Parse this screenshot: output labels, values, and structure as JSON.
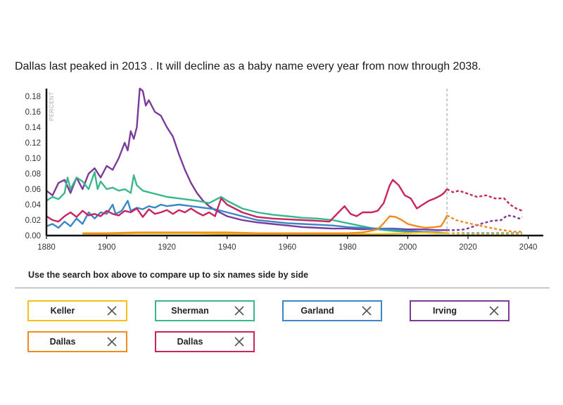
{
  "headline": {
    "text": "Dallas last peaked in 2013 . It will decline as a baby name every year from now through 2038."
  },
  "instructions": "Use the search box above to compare up to six names side by side",
  "names": [
    {
      "label": "Keller",
      "color": "#f2c21b",
      "remove_icon": "close-x-icon"
    },
    {
      "label": "Sherman",
      "color": "#3ab88c",
      "remove_icon": "close-x-icon"
    },
    {
      "label": "Garland",
      "color": "#3a87c8",
      "remove_icon": "close-x-icon"
    },
    {
      "label": "Irving",
      "color": "#7b3a9a",
      "remove_icon": "close-x-icon"
    },
    {
      "label": "Dallas",
      "color": "#f08c1e",
      "remove_icon": "close-x-icon"
    },
    {
      "label": "Dallas",
      "color": "#c8245f",
      "remove_icon": "close-x-icon"
    }
  ],
  "chart_data": {
    "type": "line",
    "title": "",
    "xlabel": "",
    "ylabel": "PERCENT",
    "xlim": [
      1880,
      2045
    ],
    "ylim": [
      0,
      0.19
    ],
    "x_ticks": [
      1880,
      1900,
      1920,
      1940,
      1960,
      1980,
      2000,
      2020,
      2040
    ],
    "y_ticks": [
      0.0,
      0.02,
      0.04,
      0.06,
      0.08,
      0.1,
      0.12,
      0.14,
      0.16,
      0.18
    ],
    "y_tick_labels": [
      "0.00",
      "0.02",
      "0.04",
      "0.06",
      "0.08",
      "0.10",
      "0.12",
      "0.14",
      "0.16",
      "0.18"
    ],
    "projection_start": 2013,
    "projection_style": "dashed",
    "series": [
      {
        "name": "Irving",
        "color": "#7b3a9a",
        "actual": [
          [
            1880,
            0.058
          ],
          [
            1882,
            0.052
          ],
          [
            1884,
            0.068
          ],
          [
            1886,
            0.072
          ],
          [
            1888,
            0.055
          ],
          [
            1890,
            0.075
          ],
          [
            1892,
            0.06
          ],
          [
            1894,
            0.08
          ],
          [
            1896,
            0.087
          ],
          [
            1898,
            0.075
          ],
          [
            1900,
            0.09
          ],
          [
            1902,
            0.085
          ],
          [
            1904,
            0.1
          ],
          [
            1906,
            0.12
          ],
          [
            1907,
            0.11
          ],
          [
            1908,
            0.135
          ],
          [
            1909,
            0.125
          ],
          [
            1910,
            0.14
          ],
          [
            1911,
            0.19
          ],
          [
            1912,
            0.187
          ],
          [
            1913,
            0.168
          ],
          [
            1914,
            0.175
          ],
          [
            1916,
            0.16
          ],
          [
            1918,
            0.155
          ],
          [
            1920,
            0.14
          ],
          [
            1922,
            0.128
          ],
          [
            1924,
            0.105
          ],
          [
            1926,
            0.085
          ],
          [
            1928,
            0.068
          ],
          [
            1930,
            0.055
          ],
          [
            1932,
            0.045
          ],
          [
            1934,
            0.038
          ],
          [
            1936,
            0.033
          ],
          [
            1938,
            0.029
          ],
          [
            1940,
            0.025
          ],
          [
            1945,
            0.02
          ],
          [
            1950,
            0.017
          ],
          [
            1955,
            0.015
          ],
          [
            1960,
            0.013
          ],
          [
            1965,
            0.011
          ],
          [
            1970,
            0.01
          ],
          [
            1975,
            0.009
          ],
          [
            1980,
            0.009
          ],
          [
            1985,
            0.008
          ],
          [
            1990,
            0.009
          ],
          [
            1995,
            0.009
          ],
          [
            2000,
            0.008
          ],
          [
            2005,
            0.008
          ],
          [
            2010,
            0.007
          ],
          [
            2013,
            0.007
          ]
        ],
        "projected": [
          [
            2013,
            0.007
          ],
          [
            2016,
            0.007
          ],
          [
            2019,
            0.008
          ],
          [
            2022,
            0.012
          ],
          [
            2025,
            0.016
          ],
          [
            2028,
            0.019
          ],
          [
            2031,
            0.02
          ],
          [
            2033,
            0.026
          ],
          [
            2035,
            0.025
          ],
          [
            2037,
            0.022
          ],
          [
            2038,
            0.024
          ]
        ]
      },
      {
        "name": "Sherman",
        "color": "#3ab88c",
        "actual": [
          [
            1880,
            0.045
          ],
          [
            1882,
            0.05
          ],
          [
            1884,
            0.047
          ],
          [
            1886,
            0.055
          ],
          [
            1887,
            0.075
          ],
          [
            1888,
            0.06
          ],
          [
            1890,
            0.075
          ],
          [
            1892,
            0.07
          ],
          [
            1894,
            0.06
          ],
          [
            1896,
            0.082
          ],
          [
            1897,
            0.06
          ],
          [
            1898,
            0.07
          ],
          [
            1900,
            0.06
          ],
          [
            1902,
            0.062
          ],
          [
            1904,
            0.058
          ],
          [
            1906,
            0.06
          ],
          [
            1908,
            0.055
          ],
          [
            1909,
            0.078
          ],
          [
            1910,
            0.065
          ],
          [
            1912,
            0.058
          ],
          [
            1914,
            0.056
          ],
          [
            1916,
            0.054
          ],
          [
            1918,
            0.052
          ],
          [
            1920,
            0.05
          ],
          [
            1924,
            0.048
          ],
          [
            1928,
            0.046
          ],
          [
            1930,
            0.045
          ],
          [
            1934,
            0.042
          ],
          [
            1938,
            0.05
          ],
          [
            1940,
            0.045
          ],
          [
            1945,
            0.035
          ],
          [
            1950,
            0.03
          ],
          [
            1955,
            0.027
          ],
          [
            1960,
            0.025
          ],
          [
            1965,
            0.023
          ],
          [
            1970,
            0.022
          ],
          [
            1975,
            0.02
          ],
          [
            1980,
            0.016
          ],
          [
            1985,
            0.012
          ],
          [
            1990,
            0.008
          ],
          [
            1995,
            0.006
          ],
          [
            2000,
            0.005
          ],
          [
            2005,
            0.004
          ],
          [
            2010,
            0.003
          ],
          [
            2013,
            0.003
          ]
        ],
        "projected": [
          [
            2013,
            0.003
          ],
          [
            2020,
            0.003
          ],
          [
            2030,
            0.002
          ],
          [
            2038,
            0.002
          ]
        ]
      },
      {
        "name": "Garland",
        "color": "#3a87c8",
        "actual": [
          [
            1880,
            0.012
          ],
          [
            1882,
            0.015
          ],
          [
            1884,
            0.01
          ],
          [
            1886,
            0.018
          ],
          [
            1888,
            0.012
          ],
          [
            1890,
            0.022
          ],
          [
            1892,
            0.015
          ],
          [
            1894,
            0.03
          ],
          [
            1896,
            0.022
          ],
          [
            1898,
            0.03
          ],
          [
            1900,
            0.028
          ],
          [
            1902,
            0.04
          ],
          [
            1903,
            0.028
          ],
          [
            1905,
            0.032
          ],
          [
            1907,
            0.045
          ],
          [
            1908,
            0.032
          ],
          [
            1910,
            0.036
          ],
          [
            1912,
            0.034
          ],
          [
            1914,
            0.038
          ],
          [
            1916,
            0.036
          ],
          [
            1918,
            0.04
          ],
          [
            1920,
            0.038
          ],
          [
            1924,
            0.04
          ],
          [
            1928,
            0.038
          ],
          [
            1932,
            0.036
          ],
          [
            1936,
            0.034
          ],
          [
            1940,
            0.03
          ],
          [
            1945,
            0.025
          ],
          [
            1950,
            0.02
          ],
          [
            1955,
            0.018
          ],
          [
            1960,
            0.016
          ],
          [
            1965,
            0.015
          ],
          [
            1970,
            0.014
          ],
          [
            1975,
            0.013
          ],
          [
            1980,
            0.011
          ],
          [
            1985,
            0.01
          ],
          [
            1990,
            0.009
          ],
          [
            1995,
            0.008
          ],
          [
            2000,
            0.006
          ],
          [
            2005,
            0.005
          ],
          [
            2010,
            0.004
          ],
          [
            2013,
            0.003
          ]
        ],
        "projected": [
          [
            2013,
            0.003
          ],
          [
            2020,
            0.003
          ],
          [
            2030,
            0.003
          ],
          [
            2038,
            0.003
          ]
        ]
      },
      {
        "name": "Keller",
        "color": "#f2c21b",
        "actual": [
          [
            1892,
            0.002
          ],
          [
            1900,
            0.002
          ],
          [
            1910,
            0.003
          ],
          [
            1920,
            0.003
          ],
          [
            1930,
            0.003
          ],
          [
            1940,
            0.002
          ],
          [
            1950,
            0.002
          ],
          [
            1960,
            0.002
          ],
          [
            1970,
            0.002
          ],
          [
            1980,
            0.002
          ],
          [
            1990,
            0.002
          ],
          [
            2000,
            0.003
          ],
          [
            2005,
            0.004
          ],
          [
            2010,
            0.003
          ],
          [
            2013,
            0.003
          ]
        ],
        "projected": [
          [
            2013,
            0.003
          ],
          [
            2020,
            0.002
          ],
          [
            2030,
            0.002
          ],
          [
            2038,
            0.002
          ]
        ]
      },
      {
        "name": "Dallas",
        "color": "#f08c1e",
        "actual": [
          [
            1892,
            0.003
          ],
          [
            1900,
            0.003
          ],
          [
            1910,
            0.004
          ],
          [
            1920,
            0.004
          ],
          [
            1930,
            0.004
          ],
          [
            1940,
            0.004
          ],
          [
            1950,
            0.003
          ],
          [
            1960,
            0.003
          ],
          [
            1970,
            0.003
          ],
          [
            1980,
            0.003
          ],
          [
            1985,
            0.004
          ],
          [
            1990,
            0.008
          ],
          [
            1992,
            0.016
          ],
          [
            1994,
            0.025
          ],
          [
            1996,
            0.024
          ],
          [
            1998,
            0.02
          ],
          [
            2000,
            0.015
          ],
          [
            2003,
            0.012
          ],
          [
            2006,
            0.01
          ],
          [
            2009,
            0.011
          ],
          [
            2011,
            0.012
          ],
          [
            2012,
            0.018
          ],
          [
            2013,
            0.026
          ]
        ],
        "projected": [
          [
            2013,
            0.026
          ],
          [
            2016,
            0.02
          ],
          [
            2020,
            0.016
          ],
          [
            2025,
            0.012
          ],
          [
            2030,
            0.008
          ],
          [
            2035,
            0.005
          ],
          [
            2038,
            0.005
          ]
        ]
      },
      {
        "name": "Dallas",
        "color": "#c8245f",
        "actual": [
          [
            1880,
            0.025
          ],
          [
            1882,
            0.02
          ],
          [
            1884,
            0.018
          ],
          [
            1886,
            0.025
          ],
          [
            1888,
            0.03
          ],
          [
            1890,
            0.024
          ],
          [
            1892,
            0.032
          ],
          [
            1894,
            0.026
          ],
          [
            1896,
            0.028
          ],
          [
            1898,
            0.025
          ],
          [
            1900,
            0.032
          ],
          [
            1902,
            0.028
          ],
          [
            1904,
            0.026
          ],
          [
            1906,
            0.032
          ],
          [
            1908,
            0.03
          ],
          [
            1910,
            0.035
          ],
          [
            1912,
            0.024
          ],
          [
            1914,
            0.034
          ],
          [
            1916,
            0.028
          ],
          [
            1918,
            0.03
          ],
          [
            1920,
            0.033
          ],
          [
            1922,
            0.028
          ],
          [
            1924,
            0.033
          ],
          [
            1926,
            0.03
          ],
          [
            1928,
            0.035
          ],
          [
            1930,
            0.03
          ],
          [
            1932,
            0.026
          ],
          [
            1934,
            0.03
          ],
          [
            1936,
            0.025
          ],
          [
            1938,
            0.048
          ],
          [
            1940,
            0.04
          ],
          [
            1945,
            0.03
          ],
          [
            1950,
            0.024
          ],
          [
            1955,
            0.022
          ],
          [
            1960,
            0.021
          ],
          [
            1965,
            0.02
          ],
          [
            1970,
            0.019
          ],
          [
            1974,
            0.018
          ],
          [
            1977,
            0.03
          ],
          [
            1979,
            0.038
          ],
          [
            1981,
            0.028
          ],
          [
            1983,
            0.025
          ],
          [
            1985,
            0.03
          ],
          [
            1988,
            0.03
          ],
          [
            1990,
            0.032
          ],
          [
            1992,
            0.042
          ],
          [
            1994,
            0.065
          ],
          [
            1995,
            0.072
          ],
          [
            1997,
            0.065
          ],
          [
            1999,
            0.052
          ],
          [
            2001,
            0.048
          ],
          [
            2003,
            0.035
          ],
          [
            2005,
            0.04
          ],
          [
            2007,
            0.045
          ],
          [
            2009,
            0.048
          ],
          [
            2011,
            0.052
          ],
          [
            2012,
            0.055
          ],
          [
            2013,
            0.06
          ]
        ],
        "projected": [
          [
            2013,
            0.06
          ],
          [
            2015,
            0.056
          ],
          [
            2017,
            0.058
          ],
          [
            2020,
            0.054
          ],
          [
            2023,
            0.05
          ],
          [
            2026,
            0.052
          ],
          [
            2029,
            0.048
          ],
          [
            2032,
            0.048
          ],
          [
            2034,
            0.04
          ],
          [
            2036,
            0.035
          ],
          [
            2038,
            0.032
          ]
        ]
      }
    ]
  }
}
